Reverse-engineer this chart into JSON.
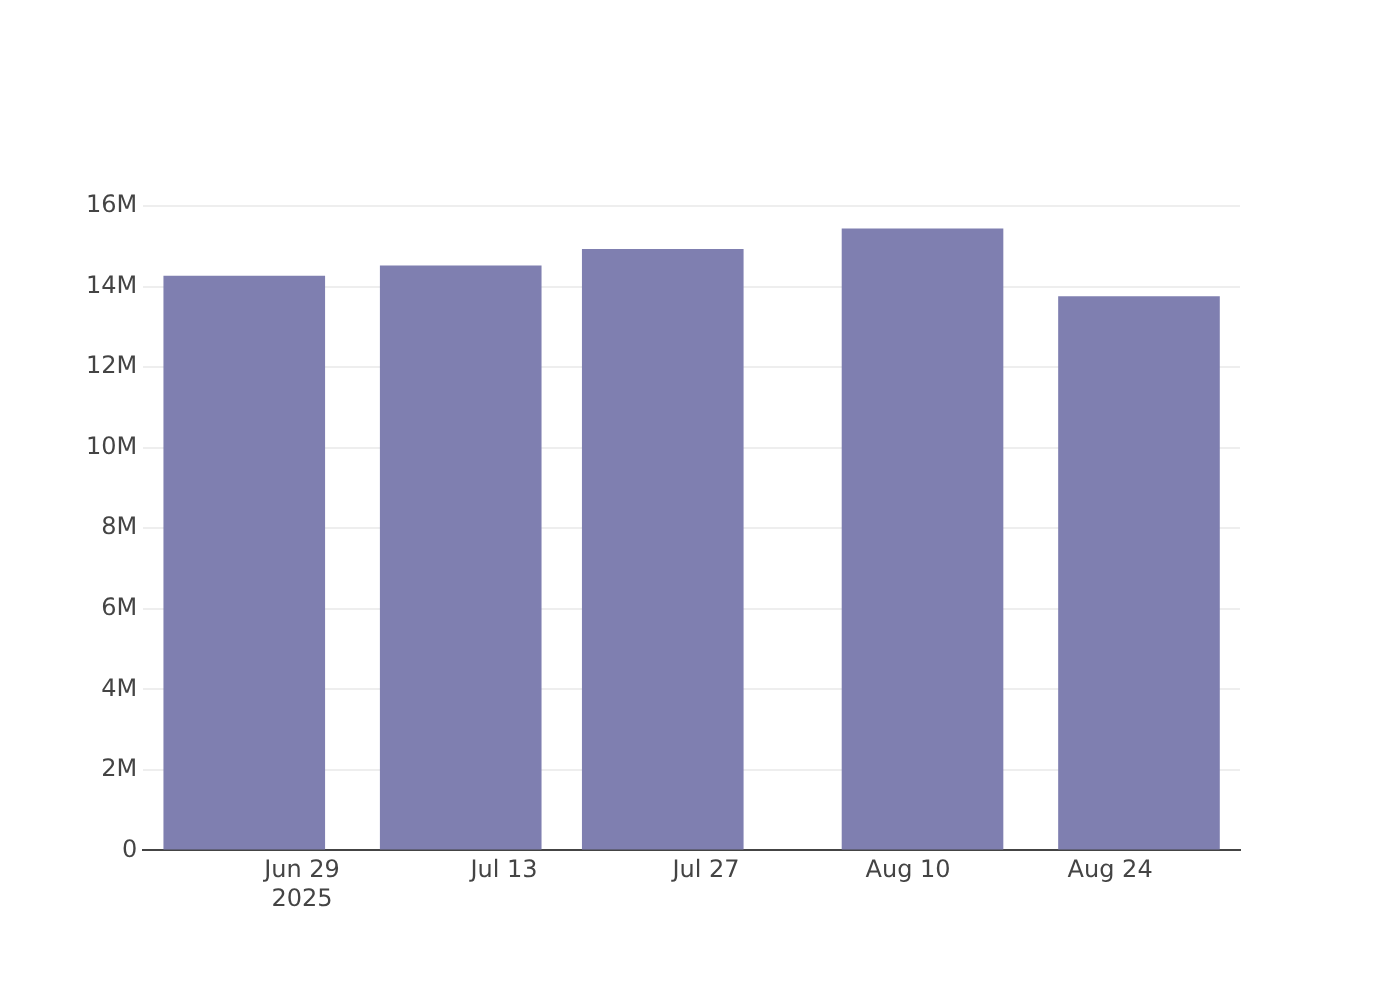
{
  "chart_data": {
    "type": "bar",
    "x": [
      "2025-06-25",
      "2025-07-10",
      "2025-07-24",
      "2025-08-11",
      "2025-08-26"
    ],
    "series": [
      {
        "color": "#7f7fb0",
        "values": [
          14.27,
          14.52,
          14.93,
          15.44,
          13.76
        ]
      }
    ],
    "xlim": [
      "2025-06-18",
      "2025-09-02"
    ],
    "xticks": [
      {
        "value": "2025-06-29",
        "label": "Jun 29\n2025"
      },
      {
        "value": "2025-07-13",
        "label": "Jul 13"
      },
      {
        "value": "2025-07-27",
        "label": "Jul 27"
      },
      {
        "value": "2025-08-10",
        "label": "Aug 10"
      },
      {
        "value": "2025-08-24",
        "label": "Aug 24"
      }
    ],
    "ylim": [
      0,
      16
    ],
    "yticks": [
      {
        "value": 0,
        "label": "0"
      },
      {
        "value": 2,
        "label": "2M"
      },
      {
        "value": 4,
        "label": "4M"
      },
      {
        "value": 6,
        "label": "6M"
      },
      {
        "value": 8,
        "label": "8M"
      },
      {
        "value": 10,
        "label": "10M"
      },
      {
        "value": 12,
        "label": "12M"
      },
      {
        "value": 14,
        "label": "14M"
      },
      {
        "value": 16,
        "label": "16M"
      }
    ],
    "grid": "y"
  }
}
